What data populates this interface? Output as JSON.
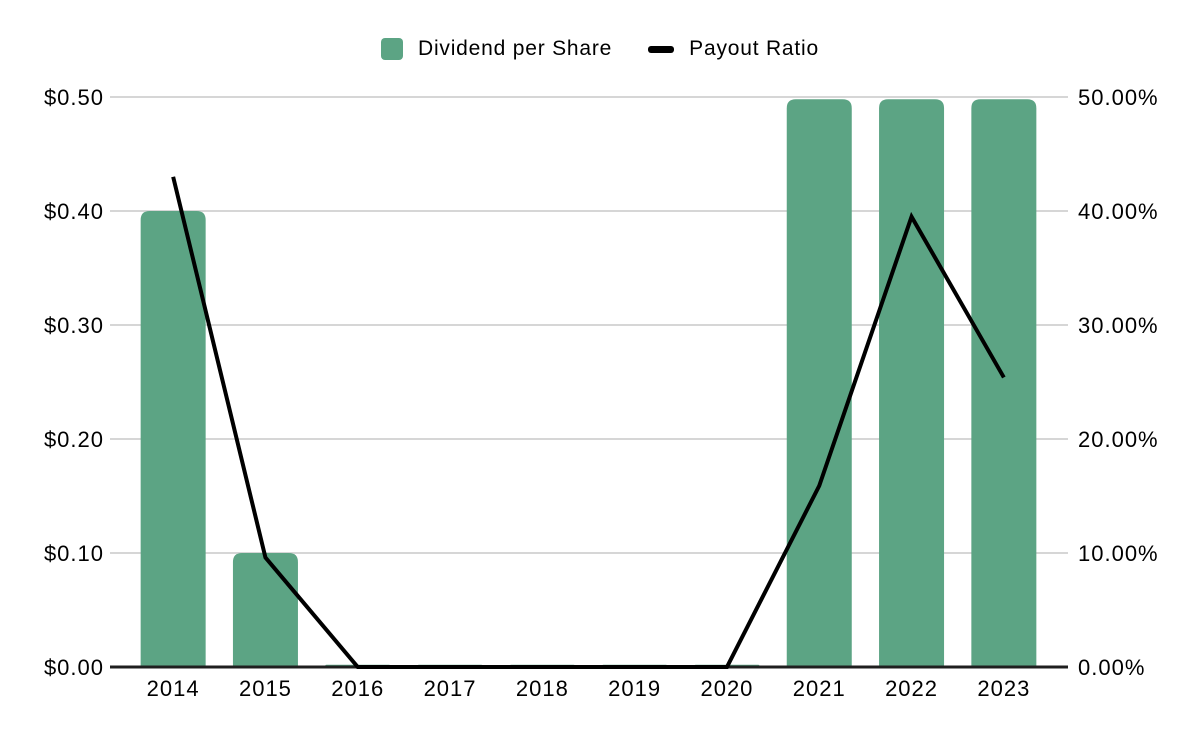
{
  "legend": {
    "items": [
      {
        "label": "Dividend per Share",
        "swatch": "square"
      },
      {
        "label": "Payout Ratio",
        "swatch": "dash"
      }
    ]
  },
  "colors": {
    "bar": "#5CA484",
    "line": "#000000",
    "gridline": "#D6D6D6",
    "axis_line": "#1F1F1F",
    "text": "#000000",
    "background": "#FFFFFF"
  },
  "chart_data": {
    "type": "combo-bar-line",
    "title": "",
    "categories": [
      "2014",
      "2015",
      "2016",
      "2017",
      "2018",
      "2019",
      "2020",
      "2021",
      "2022",
      "2023"
    ],
    "series": [
      {
        "name": "Dividend per Share",
        "type": "bar",
        "axis": "left",
        "values": [
          0.4,
          0.1,
          0.002,
          0.002,
          0.002,
          0.002,
          0.002,
          0.498,
          0.498,
          0.498
        ]
      },
      {
        "name": "Payout Ratio",
        "type": "line",
        "axis": "right",
        "values": [
          43.0,
          9.6,
          0,
          0,
          0,
          0,
          0,
          15.9,
          39.5,
          25.4
        ]
      }
    ],
    "left_axis": {
      "min": 0,
      "max": 0.5,
      "tick_labels": [
        "$0.00",
        "$0.10",
        "$0.20",
        "$0.30",
        "$0.40",
        "$0.50"
      ]
    },
    "right_axis": {
      "min": 0,
      "max": 50,
      "tick_labels": [
        "0.00%",
        "10.00%",
        "20.00%",
        "30.00%",
        "40.00%",
        "50.00%"
      ]
    },
    "grid": true,
    "legend_position": "top"
  }
}
